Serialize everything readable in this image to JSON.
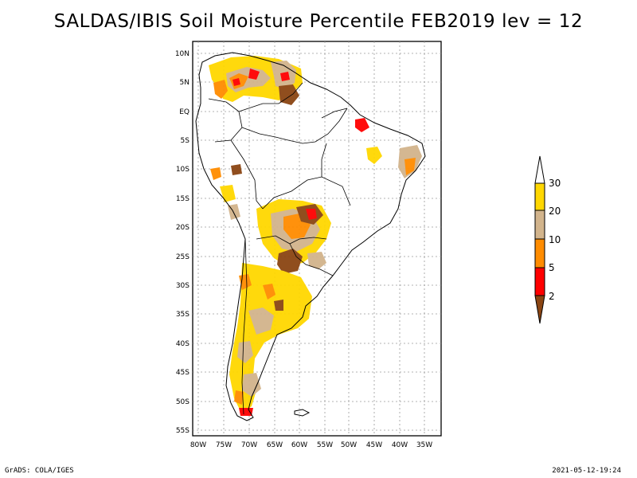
{
  "title": "SALDAS/IBIS Soil Moisture Percentile FEB2019 lev = 12",
  "footer": {
    "left": "GrADS: COLA/IGES",
    "right": "2021-05-12-19:24"
  },
  "map": {
    "lat_labels": [
      "10N",
      "5N",
      "EQ",
      "5S",
      "10S",
      "15S",
      "20S",
      "25S",
      "30S",
      "35S",
      "40S",
      "45S",
      "50S",
      "55S"
    ],
    "lon_labels": [
      "80W",
      "75W",
      "70W",
      "65W",
      "60W",
      "55W",
      "50W",
      "45W",
      "40W",
      "35W"
    ],
    "lat_range": [
      -56,
      12
    ],
    "lon_range": [
      -81,
      -33
    ],
    "grid": true
  },
  "colorbar": {
    "labels": [
      "30",
      "20",
      "10",
      "5",
      "2"
    ],
    "colors": {
      "above_30": "#ffffff",
      "c20_30": "#ffd700",
      "c10_20": "#d2b48c",
      "c5_10": "#ff8c00",
      "c2_5": "#ff0000",
      "below_2": "#8b4513"
    }
  }
}
